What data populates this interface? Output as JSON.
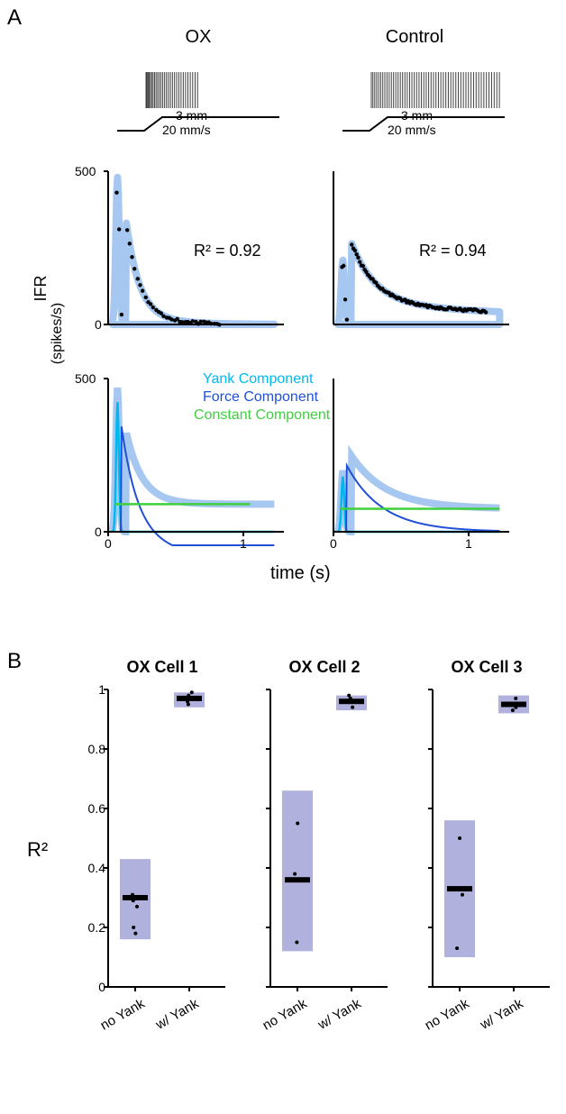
{
  "panelA": {
    "label": "A",
    "columns": {
      "ox": "OX",
      "control": "Control"
    },
    "stimulus": {
      "disp": "3 mm",
      "vel": "20 mm/s"
    },
    "ifr_axis": {
      "label": "IFR\n(spikes/s)",
      "ylim": [
        0,
        500
      ],
      "yticks": [
        0,
        500
      ]
    },
    "time_axis": {
      "label": "time (s)",
      "xlim": [
        0,
        1.3
      ],
      "xticks": [
        0,
        1
      ]
    },
    "r2": {
      "ox": "R² = 0.92",
      "control": "R² = 0.94"
    },
    "legend": {
      "yank": {
        "label": "Yank Component",
        "color": "#00b8f0"
      },
      "force": {
        "label": "Force Component",
        "color": "#2050d8"
      },
      "constant": {
        "label": "Constant Component",
        "color": "#3fcf3f"
      }
    },
    "colors": {
      "model_fill": "#a6c8f0",
      "data_points": "#000000",
      "axis": "#000000",
      "spike": "#404040"
    }
  },
  "panelB": {
    "label": "B",
    "cells": [
      {
        "title": "OX Cell 1",
        "noyank": {
          "min": 0.16,
          "max": 0.43,
          "median": 0.3,
          "pts": [
            0.31,
            0.29,
            0.27,
            0.2,
            0.18
          ]
        },
        "wyank": {
          "min": 0.94,
          "max": 0.99,
          "median": 0.97,
          "pts": [
            0.98,
            0.97,
            0.96,
            0.95,
            0.99
          ]
        }
      },
      {
        "title": "OX Cell 2",
        "noyank": {
          "min": 0.12,
          "max": 0.66,
          "median": 0.36,
          "pts": [
            0.55,
            0.38,
            0.36,
            0.15
          ]
        },
        "wyank": {
          "min": 0.93,
          "max": 0.98,
          "median": 0.96,
          "pts": [
            0.97,
            0.96,
            0.94,
            0.98
          ]
        }
      },
      {
        "title": "OX Cell 3",
        "noyank": {
          "min": 0.1,
          "max": 0.56,
          "median": 0.33,
          "pts": [
            0.5,
            0.33,
            0.31,
            0.13
          ]
        },
        "wyank": {
          "min": 0.92,
          "max": 0.98,
          "median": 0.95,
          "pts": [
            0.97,
            0.95,
            0.94,
            0.93
          ]
        }
      }
    ],
    "y_axis": {
      "label": "R²",
      "ylim": [
        0,
        1
      ],
      "yticks": [
        0,
        0.2,
        0.4,
        0.6,
        0.8,
        1
      ]
    },
    "x_categories": [
      "no Yank",
      "w/ Yank"
    ],
    "colors": {
      "box_fill": "#9090d0",
      "box_fill_opacity": 0.7,
      "median": "#000000",
      "points": "#000000"
    }
  }
}
